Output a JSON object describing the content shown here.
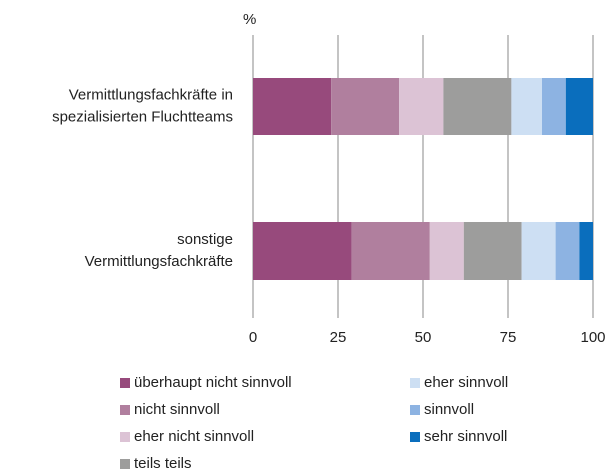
{
  "chart_data": {
    "type": "stacked_barh",
    "axis_label": "%",
    "categories": [
      [
        "Vermittlungsfachkräfte in",
        "spezialisierten Fluchtteams"
      ],
      [
        "sonstige",
        "Vermittlungsfachkräfte"
      ]
    ],
    "series": [
      {
        "name": "überhaupt nicht sinnvoll",
        "color": "#974a7c",
        "values": [
          23,
          29
        ]
      },
      {
        "name": "nicht sinnvoll",
        "color": "#b07f9e",
        "values": [
          20,
          23
        ]
      },
      {
        "name": "eher nicht sinnvoll",
        "color": "#dcc3d5",
        "values": [
          13,
          10
        ]
      },
      {
        "name": "teils teils",
        "color": "#9d9d9c",
        "values": [
          20,
          17
        ]
      },
      {
        "name": "eher sinnvoll",
        "color": "#cddff3",
        "values": [
          9,
          10
        ]
      },
      {
        "name": "sinnvoll",
        "color": "#8db3e2",
        "values": [
          7,
          7
        ]
      },
      {
        "name": "sehr sinnvoll",
        "color": "#0a6ebd",
        "values": [
          8,
          4
        ]
      }
    ],
    "xlim": [
      0,
      100
    ],
    "xticks": [
      0,
      25,
      50,
      75,
      100
    ],
    "grid": true
  }
}
